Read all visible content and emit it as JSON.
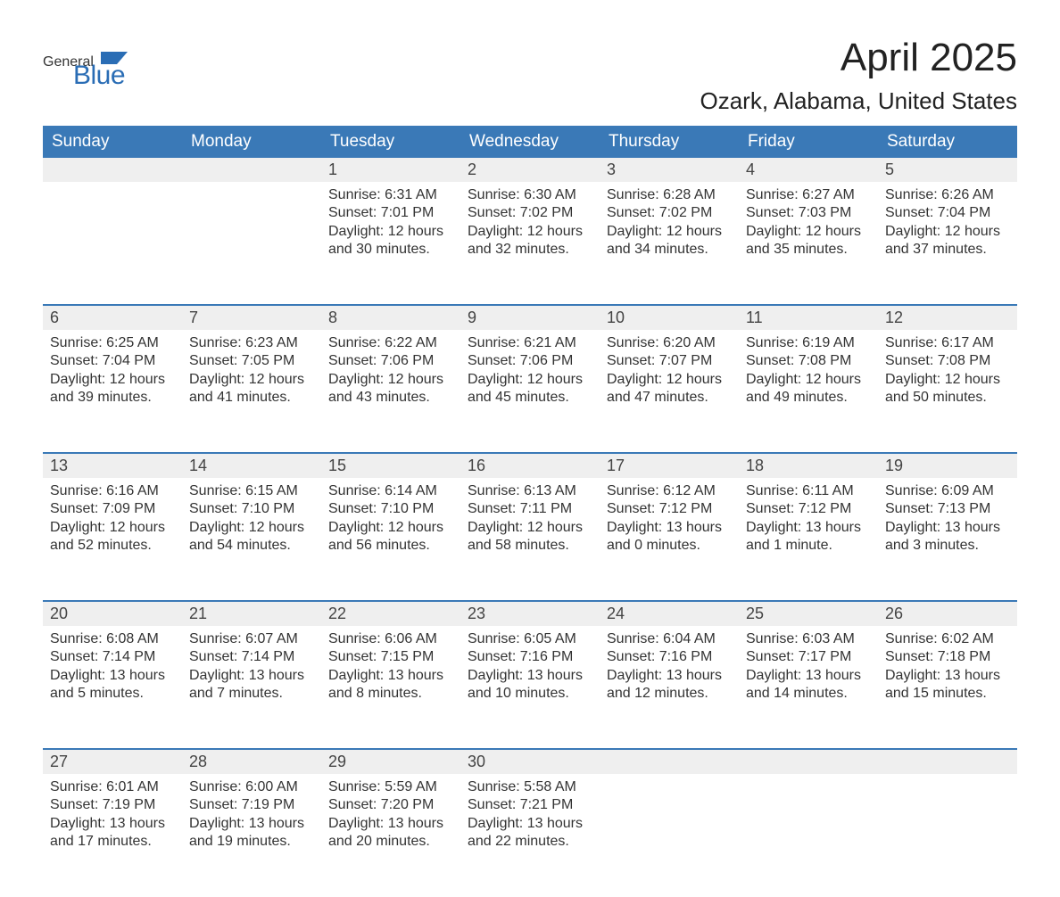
{
  "logo": {
    "text1": "General",
    "text2": "Blue",
    "accent_color": "#2a6db5"
  },
  "title": "April 2025",
  "location": "Ozark, Alabama, United States",
  "colors": {
    "header_bg": "#3a79b7",
    "header_text": "#ffffff",
    "daynum_bg": "#efefef",
    "week_divider": "#3a79b7",
    "body_text": "#333333",
    "page_bg": "#ffffff"
  },
  "typography": {
    "title_fontsize": 44,
    "location_fontsize": 26,
    "weekday_fontsize": 19,
    "daynum_fontsize": 18,
    "cell_fontsize": 16
  },
  "weekdays": [
    "Sunday",
    "Monday",
    "Tuesday",
    "Wednesday",
    "Thursday",
    "Friday",
    "Saturday"
  ],
  "labels": {
    "sunrise": "Sunrise:",
    "sunset": "Sunset:",
    "daylight": "Daylight:"
  },
  "weeks": [
    [
      null,
      null,
      {
        "day": "1",
        "sunrise": "6:31 AM",
        "sunset": "7:01 PM",
        "daylight": "12 hours and 30 minutes."
      },
      {
        "day": "2",
        "sunrise": "6:30 AM",
        "sunset": "7:02 PM",
        "daylight": "12 hours and 32 minutes."
      },
      {
        "day": "3",
        "sunrise": "6:28 AM",
        "sunset": "7:02 PM",
        "daylight": "12 hours and 34 minutes."
      },
      {
        "day": "4",
        "sunrise": "6:27 AM",
        "sunset": "7:03 PM",
        "daylight": "12 hours and 35 minutes."
      },
      {
        "day": "5",
        "sunrise": "6:26 AM",
        "sunset": "7:04 PM",
        "daylight": "12 hours and 37 minutes."
      }
    ],
    [
      {
        "day": "6",
        "sunrise": "6:25 AM",
        "sunset": "7:04 PM",
        "daylight": "12 hours and 39 minutes."
      },
      {
        "day": "7",
        "sunrise": "6:23 AM",
        "sunset": "7:05 PM",
        "daylight": "12 hours and 41 minutes."
      },
      {
        "day": "8",
        "sunrise": "6:22 AM",
        "sunset": "7:06 PM",
        "daylight": "12 hours and 43 minutes."
      },
      {
        "day": "9",
        "sunrise": "6:21 AM",
        "sunset": "7:06 PM",
        "daylight": "12 hours and 45 minutes."
      },
      {
        "day": "10",
        "sunrise": "6:20 AM",
        "sunset": "7:07 PM",
        "daylight": "12 hours and 47 minutes."
      },
      {
        "day": "11",
        "sunrise": "6:19 AM",
        "sunset": "7:08 PM",
        "daylight": "12 hours and 49 minutes."
      },
      {
        "day": "12",
        "sunrise": "6:17 AM",
        "sunset": "7:08 PM",
        "daylight": "12 hours and 50 minutes."
      }
    ],
    [
      {
        "day": "13",
        "sunrise": "6:16 AM",
        "sunset": "7:09 PM",
        "daylight": "12 hours and 52 minutes."
      },
      {
        "day": "14",
        "sunrise": "6:15 AM",
        "sunset": "7:10 PM",
        "daylight": "12 hours and 54 minutes."
      },
      {
        "day": "15",
        "sunrise": "6:14 AM",
        "sunset": "7:10 PM",
        "daylight": "12 hours and 56 minutes."
      },
      {
        "day": "16",
        "sunrise": "6:13 AM",
        "sunset": "7:11 PM",
        "daylight": "12 hours and 58 minutes."
      },
      {
        "day": "17",
        "sunrise": "6:12 AM",
        "sunset": "7:12 PM",
        "daylight": "13 hours and 0 minutes."
      },
      {
        "day": "18",
        "sunrise": "6:11 AM",
        "sunset": "7:12 PM",
        "daylight": "13 hours and 1 minute."
      },
      {
        "day": "19",
        "sunrise": "6:09 AM",
        "sunset": "7:13 PM",
        "daylight": "13 hours and 3 minutes."
      }
    ],
    [
      {
        "day": "20",
        "sunrise": "6:08 AM",
        "sunset": "7:14 PM",
        "daylight": "13 hours and 5 minutes."
      },
      {
        "day": "21",
        "sunrise": "6:07 AM",
        "sunset": "7:14 PM",
        "daylight": "13 hours and 7 minutes."
      },
      {
        "day": "22",
        "sunrise": "6:06 AM",
        "sunset": "7:15 PM",
        "daylight": "13 hours and 8 minutes."
      },
      {
        "day": "23",
        "sunrise": "6:05 AM",
        "sunset": "7:16 PM",
        "daylight": "13 hours and 10 minutes."
      },
      {
        "day": "24",
        "sunrise": "6:04 AM",
        "sunset": "7:16 PM",
        "daylight": "13 hours and 12 minutes."
      },
      {
        "day": "25",
        "sunrise": "6:03 AM",
        "sunset": "7:17 PM",
        "daylight": "13 hours and 14 minutes."
      },
      {
        "day": "26",
        "sunrise": "6:02 AM",
        "sunset": "7:18 PM",
        "daylight": "13 hours and 15 minutes."
      }
    ],
    [
      {
        "day": "27",
        "sunrise": "6:01 AM",
        "sunset": "7:19 PM",
        "daylight": "13 hours and 17 minutes."
      },
      {
        "day": "28",
        "sunrise": "6:00 AM",
        "sunset": "7:19 PM",
        "daylight": "13 hours and 19 minutes."
      },
      {
        "day": "29",
        "sunrise": "5:59 AM",
        "sunset": "7:20 PM",
        "daylight": "13 hours and 20 minutes."
      },
      {
        "day": "30",
        "sunrise": "5:58 AM",
        "sunset": "7:21 PM",
        "daylight": "13 hours and 22 minutes."
      },
      null,
      null,
      null
    ]
  ]
}
